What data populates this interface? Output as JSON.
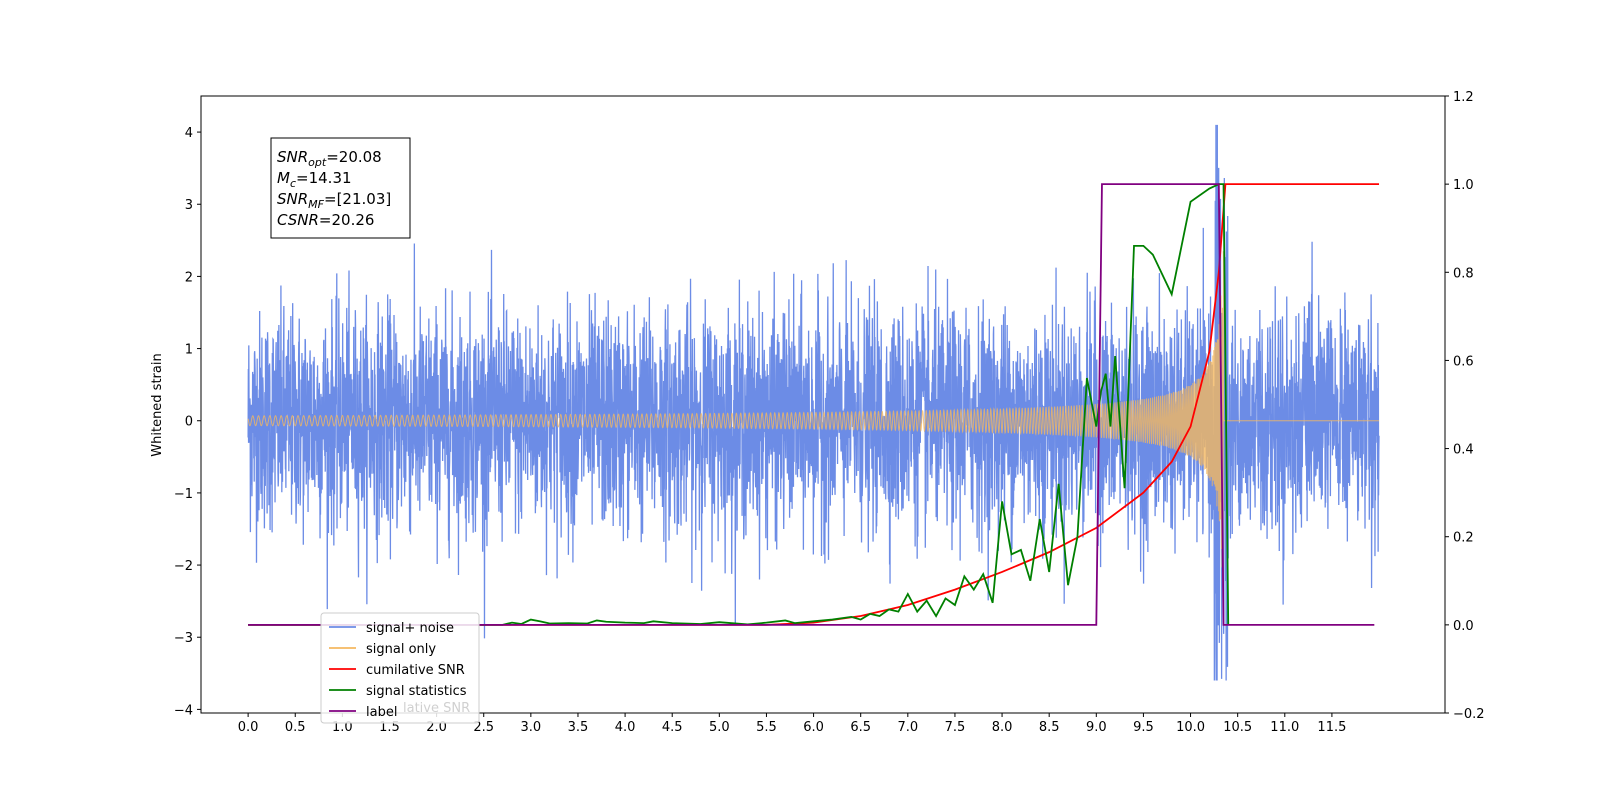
{
  "chart_data": {
    "type": "line",
    "title": "",
    "xlabel": "",
    "ylabel": "Whitened strain",
    "xlim": [
      -0.5,
      12.7
    ],
    "ylim": [
      -4.05,
      4.5
    ],
    "ylim_right": [
      -0.2,
      1.2
    ],
    "x_ticks": [
      "0.0",
      "0.5",
      "1.0",
      "1.5",
      "2.0",
      "2.5",
      "3.0",
      "3.5",
      "4.0",
      "4.5",
      "5.0",
      "5.5",
      "6.0",
      "6.5",
      "7.0",
      "7.5",
      "8.0",
      "8.5",
      "9.0",
      "9.5",
      "10.0",
      "10.5",
      "11.0",
      "11.5"
    ],
    "y_ticks_left": [
      "−4",
      "−3",
      "−2",
      "−1",
      "0",
      "1",
      "2",
      "3",
      "4"
    ],
    "y_ticks_right": [
      "−0.2",
      "0.0",
      "0.2",
      "0.4",
      "0.6",
      "0.8",
      "1.0",
      "1.2"
    ],
    "grid": false,
    "legend_position": "lower-left",
    "annotation": [
      {
        "var": "SNR",
        "sub": "opt",
        "text": "=20.08"
      },
      {
        "var": "M",
        "sub": "c",
        "text": "=14.31"
      },
      {
        "var": "SNR",
        "sub": "MF",
        "text": "=[21.03]"
      },
      {
        "var": "CSNR",
        "sub": "",
        "text": "=20.26"
      }
    ],
    "overlay_text": "lative SNR",
    "series": [
      {
        "name": "signal+ noise",
        "color": "#6c8ce6",
        "axis": "left",
        "kind": "noise",
        "x_range": [
          0.0,
          12.0
        ],
        "amplitude_std": 0.75,
        "approx_range": [
          -3.6,
          4.1
        ]
      },
      {
        "name": "signal only",
        "color": "#f4b860",
        "axis": "left",
        "kind": "chirp",
        "x_range": [
          0.0,
          12.0
        ],
        "merger_x": 10.35,
        "peak_amplitude": 3.4
      },
      {
        "name": "cumilative SNR",
        "color": "#ff0000",
        "axis": "right",
        "x": [
          0.0,
          5.5,
          6.0,
          6.5,
          7.0,
          7.5,
          8.0,
          8.5,
          9.0,
          9.5,
          9.8,
          10.0,
          10.2,
          10.3,
          10.37,
          10.4,
          12.0
        ],
        "y": [
          0.0,
          0.0,
          0.005,
          0.02,
          0.045,
          0.08,
          0.12,
          0.165,
          0.22,
          0.3,
          0.37,
          0.45,
          0.62,
          0.8,
          1.0,
          1.0,
          1.0
        ]
      },
      {
        "name": "signal statistics",
        "color": "#008000",
        "axis": "right",
        "x": [
          0.0,
          2.7,
          2.8,
          2.9,
          3.0,
          3.1,
          3.2,
          3.4,
          3.6,
          3.7,
          3.8,
          4.0,
          4.2,
          4.3,
          4.5,
          4.8,
          5.0,
          5.3,
          5.5,
          5.7,
          5.8,
          6.0,
          6.2,
          6.4,
          6.5,
          6.6,
          6.7,
          6.8,
          6.9,
          7.0,
          7.1,
          7.2,
          7.3,
          7.4,
          7.5,
          7.6,
          7.7,
          7.8,
          7.9,
          8.0,
          8.1,
          8.2,
          8.3,
          8.4,
          8.5,
          8.6,
          8.7,
          8.8,
          8.9,
          9.0,
          9.05,
          9.1,
          9.15,
          9.2,
          9.3,
          9.4,
          9.5,
          9.6,
          9.8,
          10.0,
          10.2,
          10.3,
          10.35,
          10.4
        ],
        "y": [
          0.0,
          0.0,
          0.005,
          0.002,
          0.012,
          0.008,
          0.003,
          0.004,
          0.003,
          0.01,
          0.007,
          0.005,
          0.004,
          0.008,
          0.004,
          0.002,
          0.006,
          0.001,
          0.005,
          0.01,
          0.004,
          0.008,
          0.012,
          0.018,
          0.012,
          0.025,
          0.02,
          0.035,
          0.03,
          0.07,
          0.03,
          0.055,
          0.02,
          0.06,
          0.045,
          0.11,
          0.08,
          0.115,
          0.05,
          0.28,
          0.16,
          0.17,
          0.1,
          0.24,
          0.12,
          0.32,
          0.09,
          0.2,
          0.56,
          0.45,
          0.53,
          0.57,
          0.45,
          0.61,
          0.31,
          0.86,
          0.86,
          0.84,
          0.75,
          0.96,
          0.99,
          1.0,
          1.0,
          0.0
        ]
      },
      {
        "name": "label",
        "color": "#800080",
        "axis": "right",
        "x": [
          0.0,
          9.0,
          9.06,
          10.3,
          10.35,
          11.95
        ],
        "y": [
          0.0,
          0.0,
          1.0,
          1.0,
          0.0,
          0.0
        ]
      }
    ]
  }
}
